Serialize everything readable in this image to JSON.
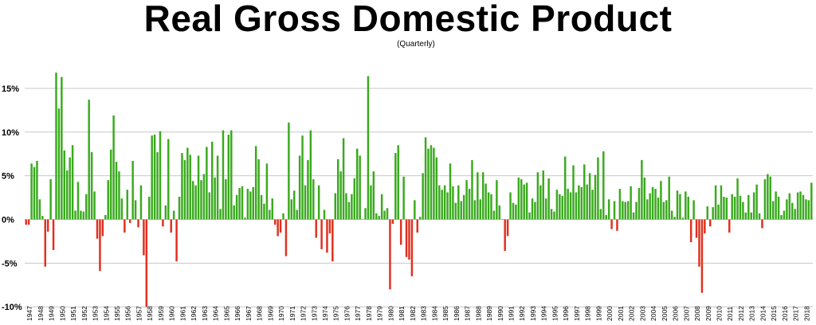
{
  "chart_data": {
    "type": "bar",
    "title": "Real Gross Domestic Product",
    "subtitle": "(Quarterly)",
    "xlabel": "",
    "ylabel": "",
    "ylim": [
      -10,
      17.5
    ],
    "yticks": [
      15,
      10,
      5,
      0,
      -5,
      -10
    ],
    "ytick_labels": [
      "15%",
      "10%",
      "5%",
      "0%",
      "-5%",
      "-10%"
    ],
    "grid": true,
    "legend": "none",
    "colors": {
      "positive": "#3aaa1e",
      "negative": "#e0301e",
      "grid": "#c8c8c8"
    },
    "first_year": 1947,
    "years": [
      "1947",
      "1948",
      "1949",
      "1950",
      "1951",
      "1952",
      "1953",
      "1954",
      "1955",
      "1956",
      "1957",
      "1958",
      "1959",
      "1960",
      "1961",
      "1962",
      "1963",
      "1964",
      "1965",
      "1966",
      "1967",
      "1968",
      "1969",
      "1970",
      "1971",
      "1972",
      "1973",
      "1974",
      "1975",
      "1976",
      "1977",
      "1978",
      "1979",
      "1980",
      "1981",
      "1982",
      "1983",
      "1984",
      "1985",
      "1986",
      "1987",
      "1988",
      "1989",
      "1990",
      "1991",
      "1992",
      "1993",
      "1994",
      "1995",
      "1996",
      "1997",
      "1998",
      "1999",
      "2000",
      "2001",
      "2002",
      "2003",
      "2004",
      "2005",
      "2006",
      "2007",
      "2008",
      "2009",
      "2010",
      "2011",
      "2012",
      "2013",
      "2014",
      "2015",
      "2016",
      "2017",
      "2018"
    ],
    "values": [
      -0.6,
      -0.6,
      6.4,
      6.0,
      6.7,
      2.3,
      0.4,
      -5.4,
      -1.4,
      4.6,
      -3.5,
      16.8,
      12.7,
      16.3,
      7.9,
      5.6,
      7.1,
      8.5,
      1.0,
      4.3,
      1.0,
      0.9,
      2.9,
      13.7,
      7.7,
      3.2,
      -2.2,
      -5.9,
      -1.9,
      0.5,
      4.5,
      8.0,
      11.9,
      6.6,
      5.5,
      2.4,
      -1.5,
      3.4,
      -0.4,
      6.7,
      2.2,
      -0.9,
      3.9,
      -4.1,
      -10.0,
      2.6,
      9.6,
      9.7,
      7.7,
      10.1,
      -0.8,
      1.6,
      9.2,
      -1.5,
      1.0,
      -4.8,
      2.6,
      7.6,
      6.8,
      8.2,
      7.4,
      4.4,
      3.9,
      7.3,
      4.5,
      5.2,
      8.3,
      3.1,
      8.9,
      4.8,
      7.3,
      1.2,
      10.2,
      4.6,
      9.7,
      10.2,
      1.6,
      2.8,
      3.6,
      3.8,
      0.2,
      3.5,
      3.2,
      3.7,
      8.4,
      6.9,
      2.8,
      1.8,
      6.4,
      1.1,
      2.4,
      -0.6,
      -1.9,
      -1.5,
      0.7,
      -4.2,
      11.1,
      2.3,
      3.3,
      1.1,
      7.3,
      9.6,
      3.9,
      6.8,
      10.2,
      4.6,
      -2.1,
      3.9,
      -3.4,
      1.1,
      -3.8,
      -1.6,
      -4.8,
      3.0,
      6.9,
      5.5,
      9.3,
      3.0,
      2.0,
      2.9,
      4.7,
      8.1,
      7.3,
      0.0,
      1.3,
      16.4,
      3.9,
      5.5,
      0.7,
      0.4,
      2.9,
      1.0,
      1.3,
      -8.0,
      -0.5,
      7.6,
      8.5,
      -2.9,
      4.9,
      -4.3,
      -4.6,
      -6.5,
      2.2,
      -1.5,
      0.3,
      5.3,
      9.4,
      8.1,
      8.5,
      8.2,
      7.1,
      3.9,
      3.4,
      3.9,
      3.1,
      6.4,
      3.8,
      1.9,
      3.9,
      2.1,
      2.8,
      4.5,
      3.5,
      6.8,
      2.2,
      5.4,
      2.3,
      5.4,
      4.1,
      3.1,
      2.9,
      1.0,
      4.5,
      1.6,
      0.0,
      -3.6,
      -1.9,
      3.1,
      1.9,
      1.7,
      4.8,
      4.6,
      4.0,
      4.2,
      0.8,
      2.4,
      2.0,
      5.4,
      3.9,
      5.6,
      2.4,
      4.7,
      1.2,
      0.9,
      3.4,
      2.9,
      2.7,
      7.2,
      3.5,
      3.1,
      6.2,
      3.1,
      3.9,
      3.7,
      6.3,
      4.0,
      5.3,
      3.4,
      5.1,
      7.1,
      1.2,
      7.8,
      0.5,
      2.3,
      -1.1,
      2.1,
      -1.3,
      3.5,
      2.1,
      2.0,
      2.1,
      3.8,
      0.8,
      2.0,
      3.6,
      6.8,
      4.8,
      2.3,
      3.0,
      3.7,
      3.5,
      2.5,
      4.4,
      2.0,
      2.2,
      4.9,
      1.0,
      0.3,
      3.3,
      2.9,
      0.2,
      3.2,
      2.6,
      -2.6,
      2.2,
      -2.1,
      -5.4,
      -8.4,
      -1.6,
      1.5,
      -0.8,
      1.4,
      3.9,
      1.7,
      3.9,
      2.6,
      2.5,
      -1.5,
      2.9,
      2.6,
      4.7,
      2.7,
      2.0,
      0.8,
      2.8,
      0.8,
      3.1,
      4.0,
      0.7,
      -1.0,
      4.6,
      5.2,
      4.9,
      2.1,
      3.2,
      2.6,
      0.5,
      1.0,
      2.3,
      3.0,
      1.9,
      1.2,
      3.1,
      3.2,
      2.8,
      2.3,
      2.2,
      4.2
    ]
  }
}
